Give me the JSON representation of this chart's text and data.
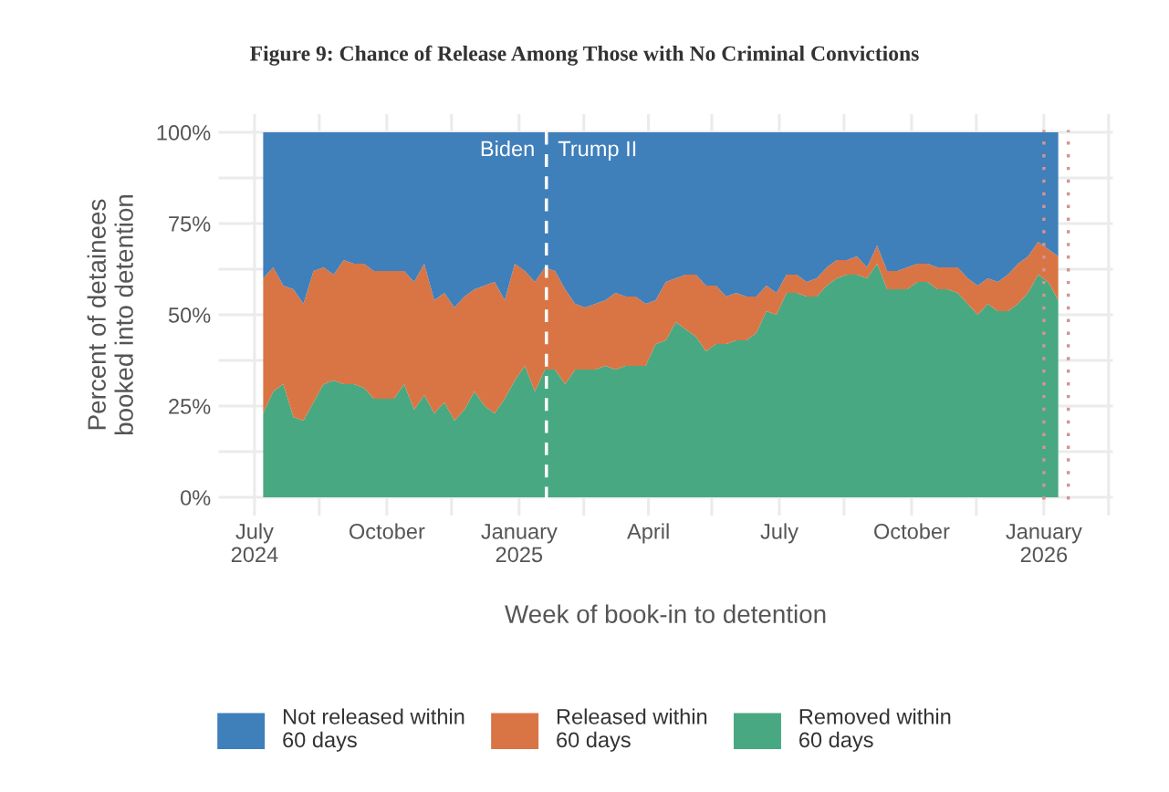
{
  "chart_data": {
    "type": "area",
    "stacked": true,
    "title": "Figure 9: Chance of Release Among Those with No Criminal Convictions",
    "xlabel": "Week of book-in to detention",
    "ylabel": "Percent of detainees\nbooked into detention",
    "x": [
      "2024-07-07",
      "2024-07-14",
      "2024-07-21",
      "2024-07-28",
      "2024-08-04",
      "2024-08-11",
      "2024-08-18",
      "2024-08-25",
      "2024-09-01",
      "2024-09-08",
      "2024-09-15",
      "2024-09-22",
      "2024-09-29",
      "2024-10-06",
      "2024-10-13",
      "2024-10-20",
      "2024-10-27",
      "2024-11-03",
      "2024-11-10",
      "2024-11-17",
      "2024-11-24",
      "2024-12-01",
      "2024-12-08",
      "2024-12-15",
      "2024-12-22",
      "2024-12-29",
      "2025-01-05",
      "2025-01-12",
      "2025-01-19",
      "2025-01-26",
      "2025-02-02",
      "2025-02-09",
      "2025-02-16",
      "2025-02-23",
      "2025-03-02",
      "2025-03-09",
      "2025-03-16",
      "2025-03-23",
      "2025-03-30",
      "2025-04-06",
      "2025-04-13",
      "2025-04-20",
      "2025-04-27",
      "2025-05-04",
      "2025-05-11",
      "2025-05-18",
      "2025-05-25",
      "2025-06-01",
      "2025-06-08",
      "2025-06-15",
      "2025-06-22",
      "2025-06-29",
      "2025-07-06",
      "2025-07-13",
      "2025-07-20",
      "2025-07-27",
      "2025-08-03",
      "2025-08-10",
      "2025-08-17",
      "2025-08-24",
      "2025-08-31",
      "2025-09-07",
      "2025-09-14",
      "2025-09-21",
      "2025-09-28",
      "2025-10-05",
      "2025-10-12",
      "2025-10-19",
      "2025-10-26",
      "2025-11-02",
      "2025-11-09",
      "2025-11-16",
      "2025-11-23",
      "2025-11-30",
      "2025-12-07",
      "2025-12-14",
      "2025-12-21",
      "2025-12-28",
      "2026-01-04",
      "2026-01-11"
    ],
    "series": [
      {
        "name": "Removed within\n60 days",
        "color": "#48a882",
        "values": [
          23,
          29,
          31,
          22,
          21,
          26,
          31,
          32,
          31,
          31,
          30,
          27,
          27,
          27,
          31,
          24,
          28,
          23,
          26,
          21,
          24,
          29,
          25,
          23,
          27,
          32,
          36,
          29,
          35,
          35,
          31,
          35,
          35,
          35,
          36,
          35,
          36,
          36,
          36,
          42,
          43,
          48,
          46,
          44,
          40,
          42,
          42,
          43,
          43,
          45,
          51,
          50,
          56,
          56,
          55,
          55,
          58,
          60,
          61,
          61,
          60,
          64,
          57,
          57,
          57,
          59,
          59,
          57,
          57,
          56,
          53,
          50,
          53,
          51,
          51,
          53,
          56,
          61,
          59,
          54
        ]
      },
      {
        "name": "Released within\n60 days",
        "color": "#d97544",
        "values": [
          37,
          34,
          27,
          35,
          32,
          36,
          32,
          29,
          34,
          33,
          34,
          35,
          35,
          35,
          31,
          35,
          36,
          31,
          30,
          31,
          31,
          28,
          33,
          36,
          27,
          32,
          26,
          30,
          28,
          27,
          26,
          18,
          17,
          18,
          18,
          21,
          19,
          19,
          17,
          12,
          16,
          12,
          15,
          17,
          18,
          16,
          13,
          13,
          12,
          10,
          7,
          6,
          5,
          5,
          4,
          5,
          5,
          5,
          4,
          5,
          3,
          5,
          5,
          5,
          6,
          5,
          5,
          6,
          6,
          7,
          7,
          8,
          7,
          8,
          10,
          11,
          10,
          9,
          9,
          12
        ]
      },
      {
        "name": "Not released within\n60 days",
        "color": "#3f7fba",
        "values": [
          40,
          37,
          42,
          43,
          47,
          38,
          37,
          39,
          35,
          36,
          36,
          38,
          38,
          38,
          38,
          41,
          36,
          46,
          44,
          48,
          45,
          43,
          42,
          41,
          46,
          36,
          38,
          41,
          37,
          38,
          43,
          47,
          48,
          47,
          46,
          44,
          45,
          45,
          47,
          46,
          41,
          40,
          39,
          39,
          42,
          42,
          45,
          44,
          45,
          45,
          42,
          44,
          39,
          39,
          41,
          40,
          37,
          35,
          35,
          34,
          37,
          31,
          38,
          38,
          37,
          36,
          36,
          37,
          37,
          37,
          40,
          42,
          40,
          41,
          39,
          36,
          34,
          30,
          32,
          34
        ]
      }
    ],
    "xlim": [
      "2024-06-06",
      "2026-02-18"
    ],
    "xticks": [
      {
        "value": "2024-07-01",
        "label": "July\n2024"
      },
      {
        "value": "2024-08-15",
        "label": null
      },
      {
        "value": "2024-10-01",
        "label": "October"
      },
      {
        "value": "2024-11-15",
        "label": null
      },
      {
        "value": "2025-01-01",
        "label": "January\n2025"
      },
      {
        "value": "2025-02-15",
        "label": null
      },
      {
        "value": "2025-04-01",
        "label": "April"
      },
      {
        "value": "2025-05-15",
        "label": null
      },
      {
        "value": "2025-07-01",
        "label": "July"
      },
      {
        "value": "2025-08-15",
        "label": null
      },
      {
        "value": "2025-10-01",
        "label": "October"
      },
      {
        "value": "2025-11-15",
        "label": null
      },
      {
        "value": "2026-01-01",
        "label": "January\n2026"
      },
      {
        "value": "2026-02-15",
        "label": null
      }
    ],
    "ylim": [
      -5,
      105
    ],
    "yticks": [
      {
        "value": 0,
        "label": "0%"
      },
      {
        "value": 12.5,
        "label": null
      },
      {
        "value": 25,
        "label": "25%"
      },
      {
        "value": 37.5,
        "label": null
      },
      {
        "value": 50,
        "label": "50%"
      },
      {
        "value": 62.5,
        "label": null
      },
      {
        "value": 75,
        "label": "75%"
      },
      {
        "value": 87.5,
        "label": null
      },
      {
        "value": 100,
        "label": "100%"
      }
    ],
    "grid": true,
    "legend": "bottom",
    "ref_lines": [
      {
        "axis": "x",
        "value": "2025-01-20",
        "color": "#ffffff",
        "line_style": "dashed"
      },
      {
        "axis": "x",
        "value": "2026-01-01",
        "color": "#d09595",
        "line_style": "dotted"
      },
      {
        "axis": "x",
        "value": "2026-01-18",
        "color": "#d09595",
        "line_style": "dotted"
      }
    ],
    "annotations": [
      "Biden",
      "Trump II"
    ]
  }
}
